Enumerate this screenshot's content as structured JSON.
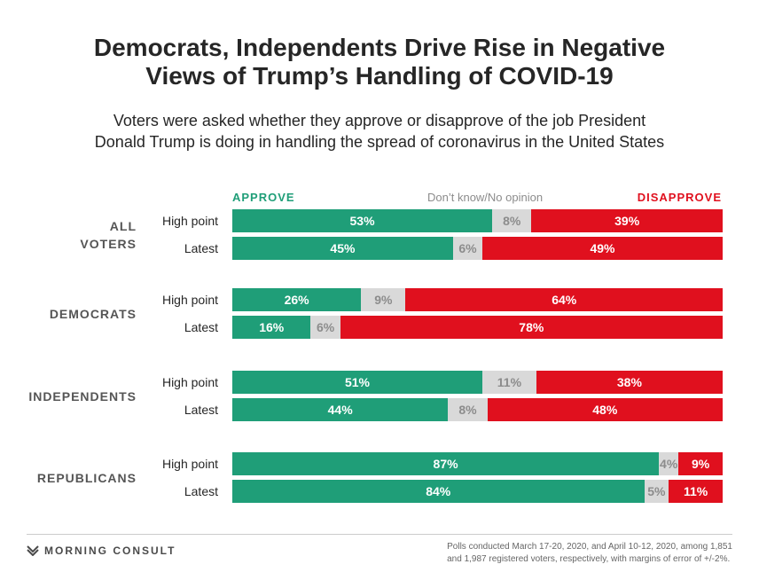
{
  "title_lines": [
    "Democrats, Independents Drive Rise in Negative",
    "Views of Trump’s Handling of COVID-19"
  ],
  "subtitle_lines": [
    "Voters were asked whether they approve or disapprove of the job President",
    "Donald Trump is doing in handling the spread of coronavirus in the United States"
  ],
  "legend": {
    "approve": "APPROVE",
    "dont_know": "Don’t know/No opinion",
    "disapprove": "DISAPPROVE"
  },
  "colors": {
    "approve": "#1f9e78",
    "dont_know": "#d9d9d9",
    "disapprove": "#e0101e"
  },
  "chart_data": {
    "type": "bar",
    "stacked": true,
    "orientation": "horizontal",
    "series_names": [
      "APPROVE",
      "Don’t know/No opinion",
      "DISAPPROVE"
    ],
    "groups": [
      {
        "name_lines": [
          "ALL",
          "VOTERS"
        ],
        "rows": [
          {
            "label": "High point",
            "values": [
              53,
              8,
              39
            ]
          },
          {
            "label": "Latest",
            "values": [
              45,
              6,
              49
            ]
          }
        ]
      },
      {
        "name_lines": [
          "DEMOCRATS"
        ],
        "rows": [
          {
            "label": "High point",
            "values": [
              26,
              9,
              64
            ]
          },
          {
            "label": "Latest",
            "values": [
              16,
              6,
              78
            ]
          }
        ]
      },
      {
        "name_lines": [
          "INDEPENDENTS"
        ],
        "rows": [
          {
            "label": "High point",
            "values": [
              51,
              11,
              38
            ]
          },
          {
            "label": "Latest",
            "values": [
              44,
              8,
              48
            ]
          }
        ]
      },
      {
        "name_lines": [
          "REPUBLICANS"
        ],
        "rows": [
          {
            "label": "High point",
            "values": [
              87,
              4,
              9
            ]
          },
          {
            "label": "Latest",
            "values": [
              84,
              5,
              11
            ]
          }
        ]
      }
    ]
  },
  "footer": {
    "brand": "MORNING CONSULT",
    "note_lines": [
      "Polls conducted March 17-20, 2020, and April 10-12, 2020, among 1,851",
      "and 1,987 registered voters, respectively, with margins of error of +/-2%."
    ]
  }
}
